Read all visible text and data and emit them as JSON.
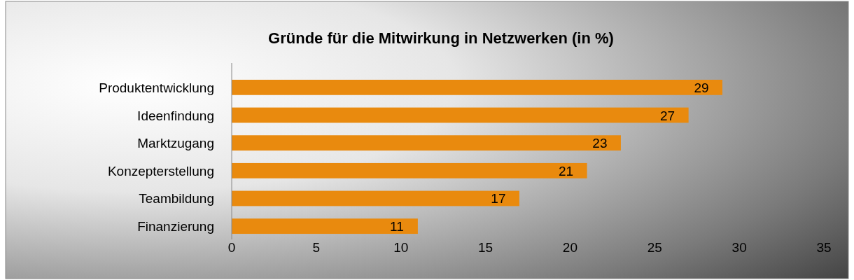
{
  "chart_data": {
    "type": "bar",
    "orientation": "horizontal",
    "title": "Gründe für die Mitwirkung in Netzwerken (in %)",
    "categories": [
      "Produktentwicklung",
      "Ideenfindung",
      "Marktzugang",
      "Konzepterstellung",
      "Teambildung",
      "Finanzierung"
    ],
    "values": [
      29,
      27,
      23,
      21,
      17,
      11
    ],
    "color": "#e98a0e",
    "xlim": [
      0,
      35
    ],
    "xticks": [
      0,
      5,
      10,
      15,
      20,
      25,
      30,
      35
    ],
    "data_labels": true
  }
}
